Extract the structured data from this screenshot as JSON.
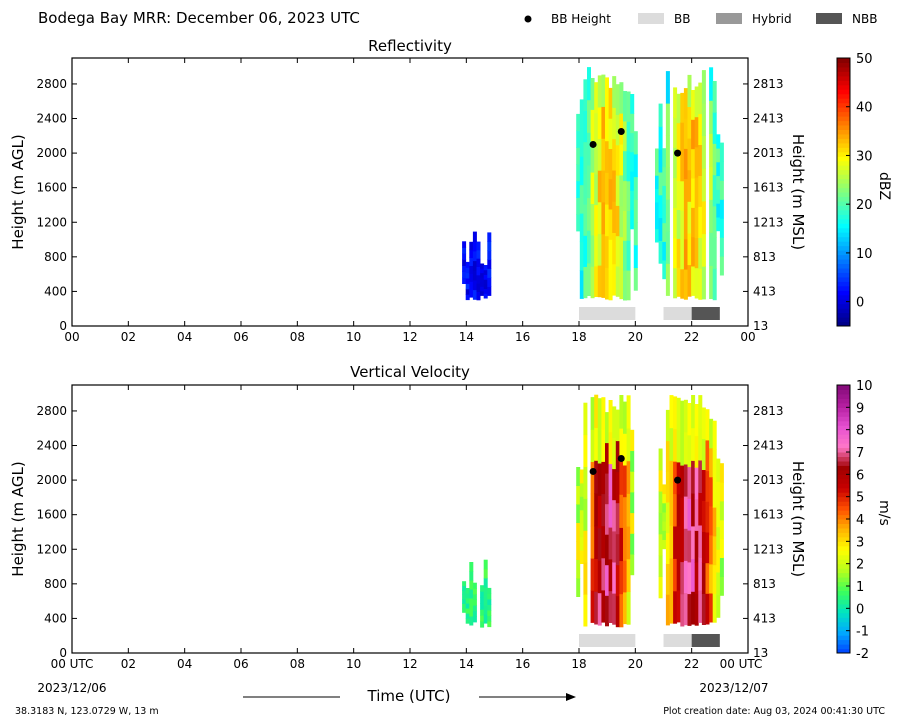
{
  "header": {
    "title": "Bodega Bay MRR:  December 06, 2023 UTC"
  },
  "legend": {
    "placement": "top-right",
    "items": [
      {
        "label": "BB Height",
        "kind": "marker",
        "color": "#000000"
      },
      {
        "label": "BB",
        "kind": "patch",
        "color": "#dcdcdc"
      },
      {
        "label": "Hybrid",
        "kind": "patch",
        "color": "#999999"
      },
      {
        "label": "NBB",
        "kind": "patch",
        "color": "#555555"
      }
    ]
  },
  "footer": {
    "location": "38.3183 N, 123.0729 W, 13 m",
    "created": "Plot creation date: Aug 03, 2024 00:41:30 UTC",
    "xlabel": "Time (UTC)",
    "start_date": "2023/12/06",
    "end_date": "2023/12/07"
  },
  "chart_data": [
    {
      "type": "heatmap",
      "title": "Reflectivity",
      "xlabel": "",
      "ylabel": "Height (m AGL)",
      "y2label": "Height (m MSL)",
      "xlim": [
        0,
        24
      ],
      "ylim": [
        0,
        3100
      ],
      "x_ticks": [
        "00",
        "02",
        "04",
        "06",
        "08",
        "10",
        "12",
        "14",
        "16",
        "18",
        "20",
        "22",
        "00"
      ],
      "y_ticks": [
        0,
        400,
        800,
        1200,
        1600,
        2000,
        2400,
        2800
      ],
      "y2_ticks": [
        "13",
        "413",
        "813",
        "1213",
        "1613",
        "2013",
        "2413",
        "2813"
      ],
      "colorbar": {
        "label": "dBZ",
        "min": -5,
        "max": 50,
        "ticks": [
          0,
          10,
          20,
          30,
          40,
          50
        ],
        "colors": [
          "#00007f",
          "#0000ff",
          "#007fff",
          "#00ffff",
          "#7fff7f",
          "#ffff00",
          "#ff7f00",
          "#ff0000",
          "#7f0000"
        ]
      },
      "echo_regions": [
        {
          "x": [
            13.85,
            14.85
          ],
          "y": [
            300,
            1100
          ],
          "value": 2
        },
        {
          "x": [
            17.9,
            20.0
          ],
          "y": [
            300,
            3000
          ],
          "value": 30
        },
        {
          "x": [
            20.7,
            23.1
          ],
          "y": [
            300,
            3000
          ],
          "value": 30
        }
      ],
      "bb_height": [
        {
          "time": 18.5,
          "height": 2100
        },
        {
          "time": 19.5,
          "height": 2250
        },
        {
          "time": 21.5,
          "height": 2000
        }
      ],
      "bb_class": [
        {
          "start": 18.0,
          "end": 20.0,
          "class": "BB"
        },
        {
          "start": 21.0,
          "end": 22.0,
          "class": "BB"
        },
        {
          "start": 22.0,
          "end": 23.0,
          "class": "NBB"
        }
      ]
    },
    {
      "type": "heatmap",
      "title": "Vertical Velocity",
      "xlabel": "Time (UTC)",
      "ylabel": "Height (m AGL)",
      "y2label": "Height (m MSL)",
      "xlim": [
        0,
        24
      ],
      "ylim": [
        0,
        3100
      ],
      "x_ticks": [
        "00 UTC",
        "02",
        "04",
        "06",
        "08",
        "10",
        "12",
        "14",
        "16",
        "18",
        "20",
        "22",
        "00 UTC"
      ],
      "y_ticks": [
        0,
        400,
        800,
        1200,
        1600,
        2000,
        2400,
        2800
      ],
      "y2_ticks": [
        "13",
        "413",
        "813",
        "1213",
        "1613",
        "2013",
        "2413",
        "2813"
      ],
      "colorbar": {
        "label": "m/s",
        "min": -2,
        "max": 10,
        "ticks": [
          -2,
          -1,
          0,
          1,
          2,
          3,
          4,
          5,
          6,
          7,
          8,
          9,
          10
        ],
        "colors": [
          "#0040ff",
          "#00aaff",
          "#00e5c0",
          "#3cff5a",
          "#b4ff1e",
          "#ffff00",
          "#ffb400",
          "#ff5000",
          "#c80000",
          "#a00000",
          "#ff78c8",
          "#e650d2",
          "#b41ea0",
          "#820a78"
        ]
      },
      "echo_regions": [
        {
          "x": [
            13.85,
            14.85
          ],
          "y": [
            300,
            1100
          ],
          "value": 0.5
        },
        {
          "x": [
            17.9,
            20.0
          ],
          "y": [
            300,
            3000
          ],
          "value": 6
        },
        {
          "x": [
            20.7,
            23.1
          ],
          "y": [
            300,
            3000
          ],
          "value": 6
        }
      ],
      "bb_height": [
        {
          "time": 18.5,
          "height": 2100
        },
        {
          "time": 19.5,
          "height": 2250
        },
        {
          "time": 21.5,
          "height": 2000
        }
      ],
      "bb_class": [
        {
          "start": 18.0,
          "end": 20.0,
          "class": "BB"
        },
        {
          "start": 21.0,
          "end": 22.0,
          "class": "BB"
        },
        {
          "start": 22.0,
          "end": 23.0,
          "class": "NBB"
        }
      ]
    }
  ]
}
